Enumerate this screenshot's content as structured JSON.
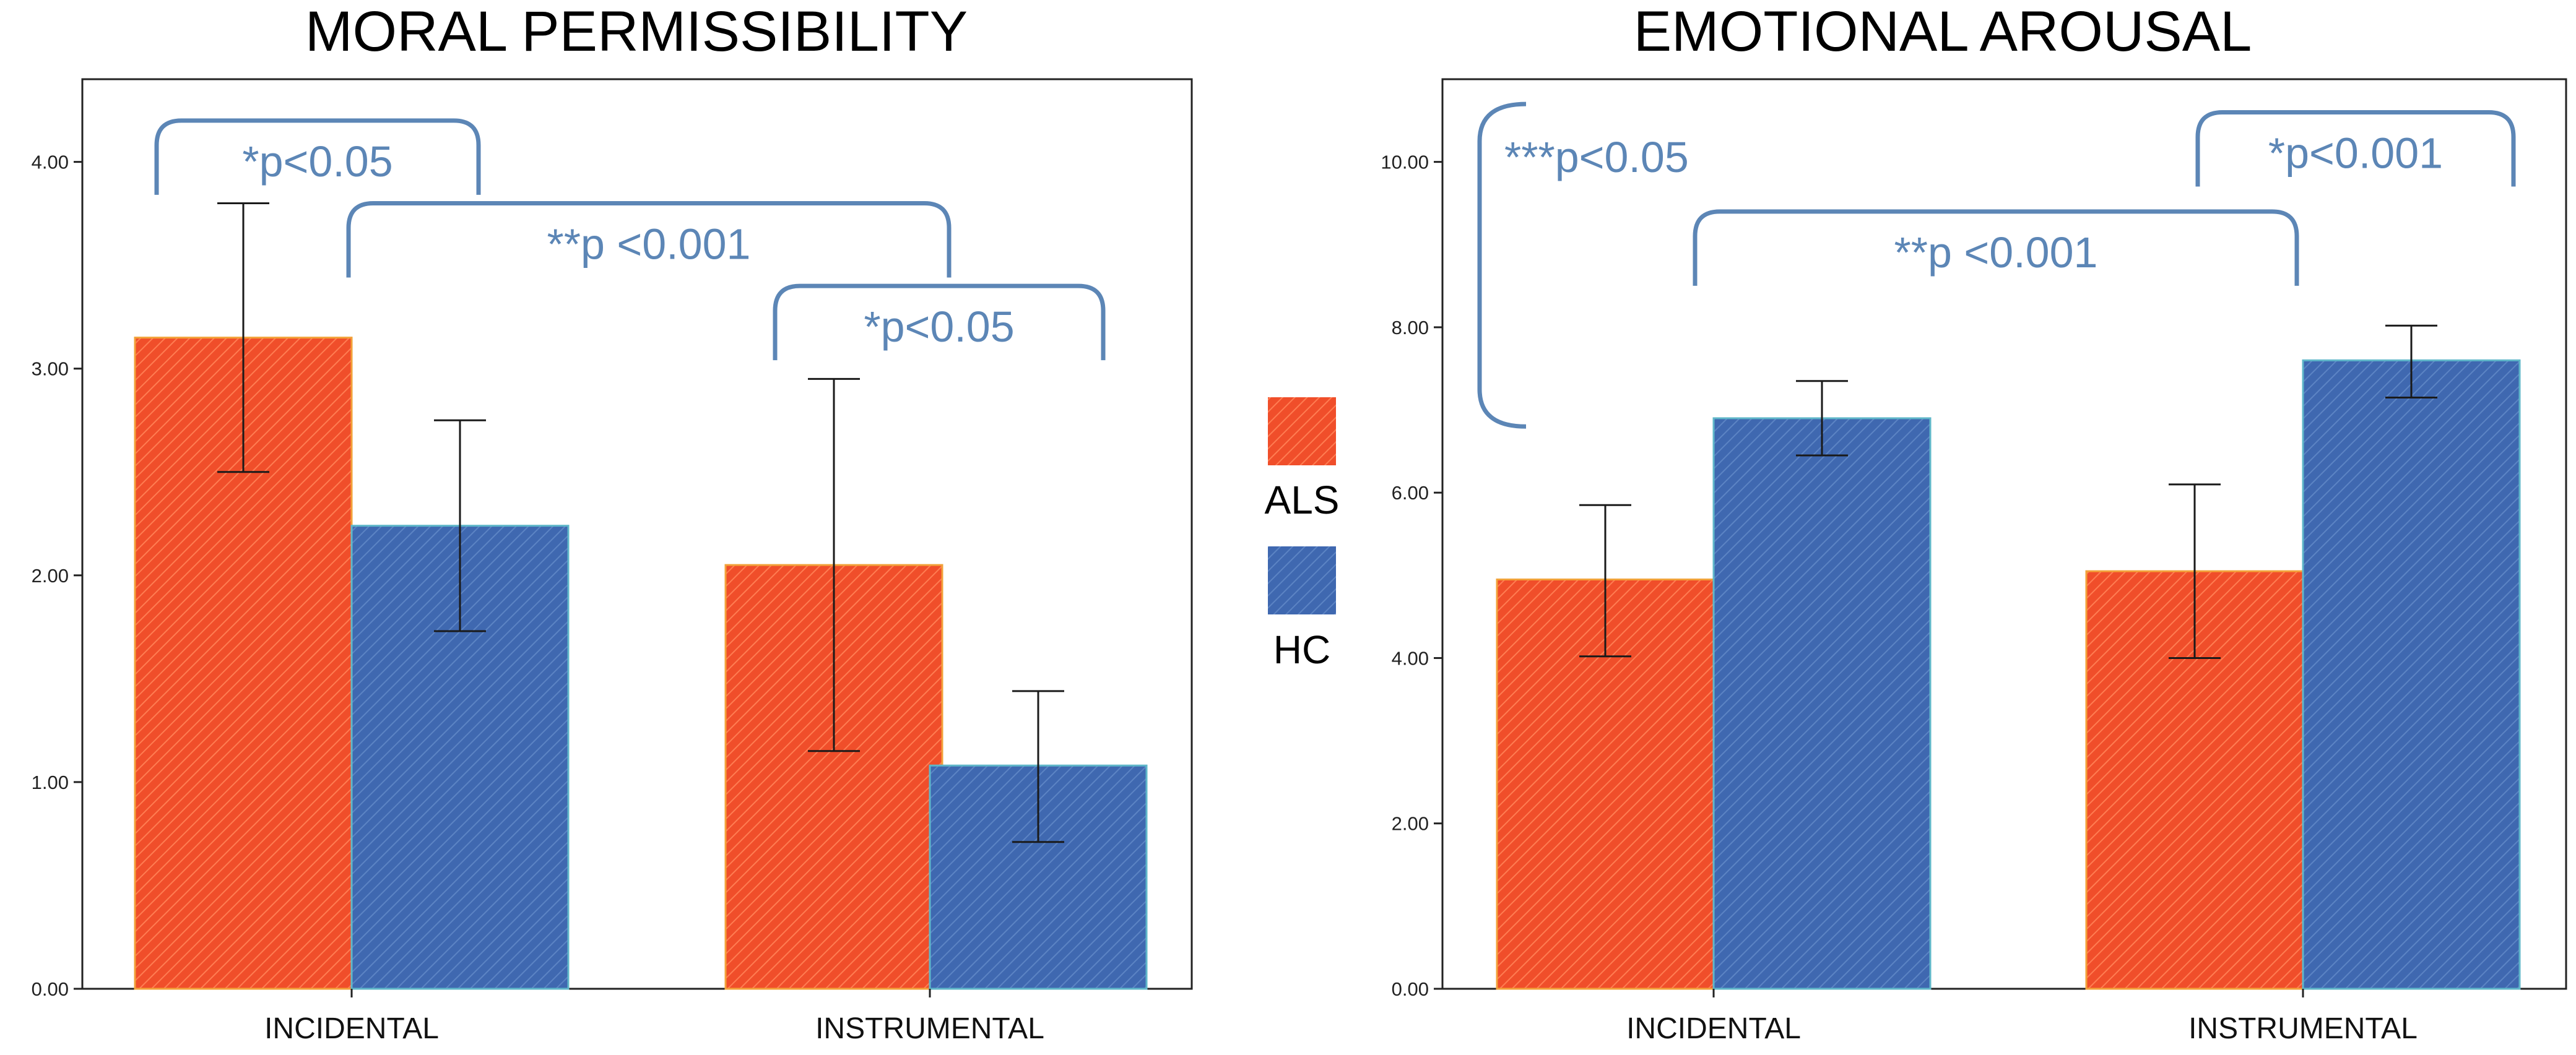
{
  "chart_data": [
    {
      "type": "bar",
      "title": "MORAL PERMISSIBILITY",
      "categories": [
        "INCIDENTAL",
        "INSTRUMENTAL"
      ],
      "series": [
        {
          "name": "ALS",
          "values": [
            3.15,
            2.05
          ],
          "err_low": [
            2.5,
            1.15
          ],
          "err_high": [
            3.8,
            2.95
          ]
        },
        {
          "name": "HC",
          "values": [
            2.24,
            1.08
          ],
          "err_low": [
            1.73,
            0.71
          ],
          "err_high": [
            2.75,
            1.44
          ]
        }
      ],
      "ylim": [
        0,
        4.4
      ],
      "yticks": [
        "0.00",
        "1.00",
        "2.00",
        "3.00",
        "4.00"
      ],
      "xlabel": "",
      "ylabel": "",
      "annotations": [
        {
          "text": "*p<0.05",
          "from": [
            0,
            0
          ],
          "to": [
            0,
            1
          ],
          "level": 4.2
        },
        {
          "text": "**p <0.001",
          "from": [
            0,
            1
          ],
          "to": [
            1,
            0
          ],
          "level": 3.8
        },
        {
          "text": "*p<0.05",
          "from": [
            1,
            0
          ],
          "to": [
            1,
            1
          ],
          "level": 3.4
        }
      ]
    },
    {
      "type": "bar",
      "title": "EMOTIONAL AROUSAL",
      "categories": [
        "INCIDENTAL",
        "INSTRUMENTAL"
      ],
      "series": [
        {
          "name": "ALS",
          "values": [
            4.95,
            5.05
          ],
          "err_low": [
            4.02,
            4.0
          ],
          "err_high": [
            5.85,
            6.1
          ]
        },
        {
          "name": "HC",
          "values": [
            6.9,
            7.6
          ],
          "err_low": [
            6.45,
            7.15
          ],
          "err_high": [
            7.35,
            8.02
          ]
        }
      ],
      "ylim": [
        0,
        11.0
      ],
      "yticks": [
        "0.00",
        "2.00",
        "4.00",
        "6.00",
        "8.00",
        "10.00"
      ],
      "xlabel": "",
      "ylabel": "",
      "annotations": [
        {
          "text": "***p<0.05",
          "vertical": true,
          "range": [
            6.8,
            10.7
          ]
        },
        {
          "text": "*p<0.001",
          "from": [
            1,
            1
          ],
          "to": [
            1,
            1
          ],
          "level": 10.6,
          "span": "right"
        },
        {
          "text": "**p <0.001",
          "from": [
            0,
            0
          ],
          "to": [
            1,
            0
          ],
          "level": 9.4
        }
      ]
    }
  ],
  "legend": {
    "position": "center",
    "items": [
      {
        "label": "ALS",
        "color": "#f04e2a"
      },
      {
        "label": "HC",
        "color": "#3f68b0"
      }
    ]
  },
  "colors": {
    "als": "#f04e2a",
    "hc": "#3f68b0",
    "annotation": "#5c86b6"
  }
}
